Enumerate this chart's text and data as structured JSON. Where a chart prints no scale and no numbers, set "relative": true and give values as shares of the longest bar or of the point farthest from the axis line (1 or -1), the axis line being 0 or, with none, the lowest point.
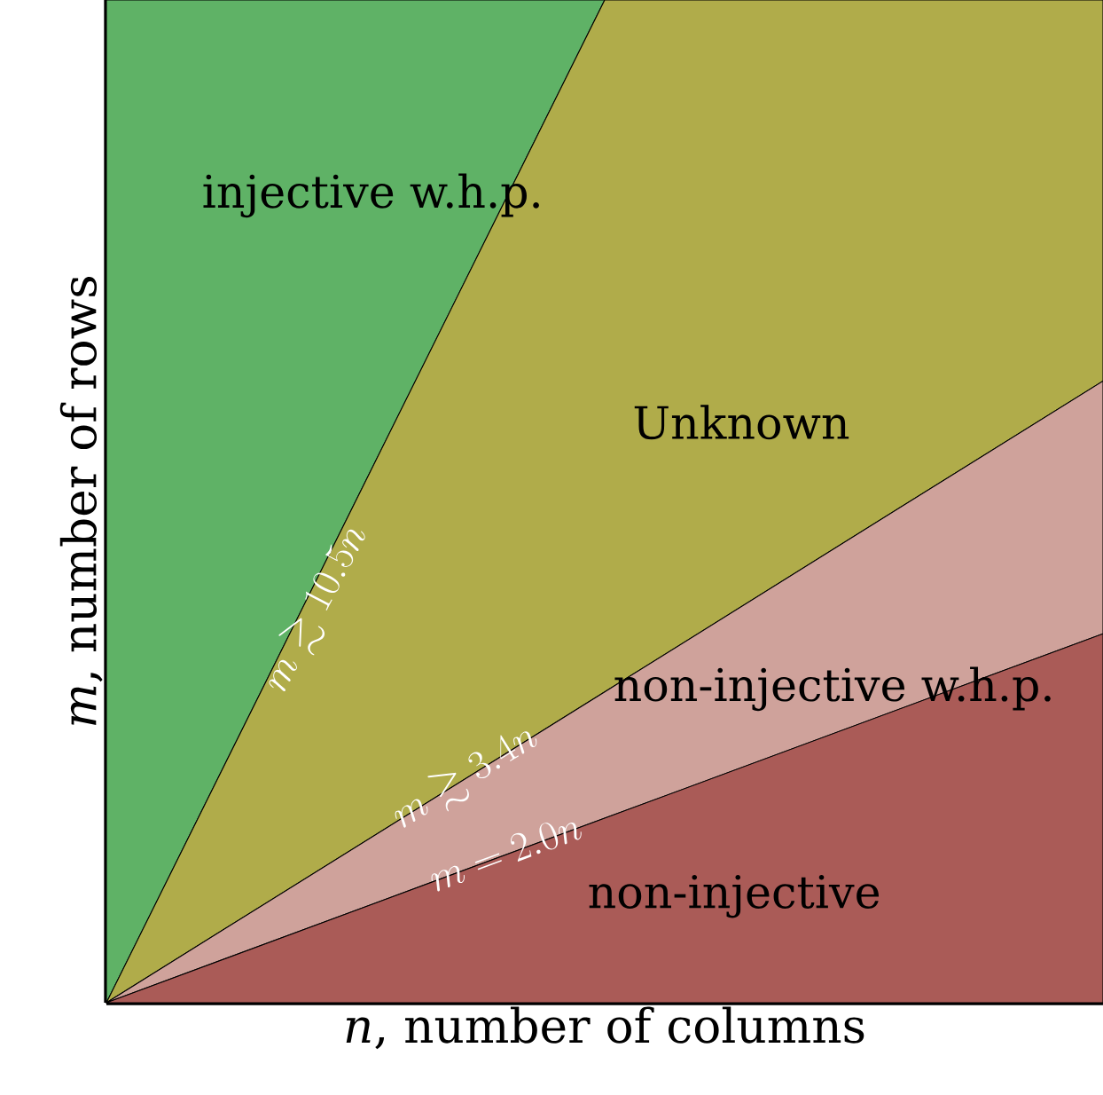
{
  "chart_data": {
    "type": "area",
    "stacked": true,
    "relative": true,
    "xlabel": "*n*, number of columns",
    "ylabel": "*m*, number of rows",
    "categories": [
      null,
      null,
      null
    ],
    "series": [
      {
        "name": "non-injective",
        "color": "#aa5b57",
        "values": [
          0,
          0.184,
          0.368
        ]
      },
      {
        "name": "non-injective w.h.p.",
        "color": "#cfa29b",
        "values": [
          0,
          0.126,
          0.252
        ]
      },
      {
        "name": "Unknown",
        "color": "#b0ac4a",
        "values": [
          0,
          0.69,
          0.38
        ]
      },
      {
        "name": "injective w.h.p.",
        "color": "#5fb266",
        "values": [
          1,
          0,
          null
        ]
      }
    ],
    "annotations": [
      "m = 2.0n",
      "m \\gtrsim 3.4n",
      "m \\gtrsim 10.5n"
    ]
  }
}
